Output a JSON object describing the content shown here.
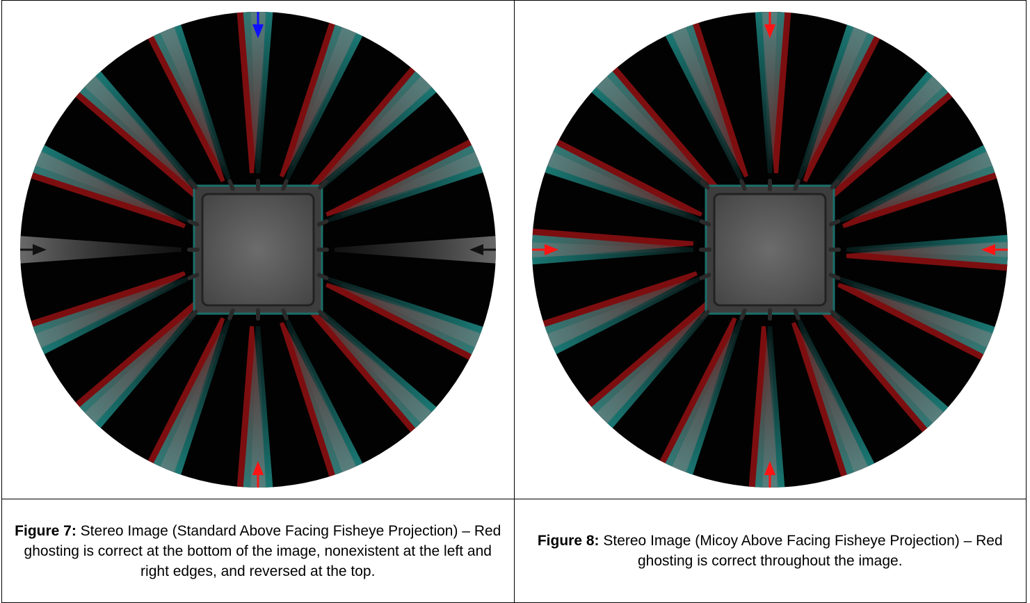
{
  "figures": [
    {
      "id": "fig7",
      "label": "Figure 7:",
      "caption": " Stereo Image (Standard Above Facing Fisheye Projection) – Red ghosting is correct at the bottom of the image, nonexistent at the left and right edges, and reversed at the top.",
      "arrow_colors": {
        "top": "#1010ff",
        "bottom": "#ff1414",
        "left": "#111111",
        "right": "#111111"
      },
      "ghost_mode": "standard"
    },
    {
      "id": "fig8",
      "label": "Figure 8:",
      "caption": " Stereo Image (Micoy Above Facing Fisheye Projection) – Red ghosting is correct throughout the image.",
      "arrow_colors": {
        "top": "#ff1414",
        "bottom": "#ff1414",
        "left": "#ff1414",
        "right": "#ff1414"
      },
      "ghost_mode": "micoy"
    }
  ],
  "colors": {
    "cyan": "#1f8f8a",
    "red": "#8a0f12",
    "disc": "#020202",
    "panel": "#5a5a5a"
  }
}
